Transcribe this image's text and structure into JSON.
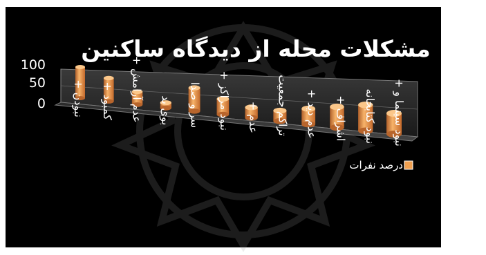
{
  "chart_data": {
    "type": "bar",
    "title": "مشکلات محله از دیدگاه ساکنین",
    "categories": [
      "نبودن +",
      "کمبود +",
      "عدم آرامش +",
      "بوی بد",
      "سر و صدا",
      "نبود مراکز +",
      "عدم +",
      "تراکم جمعیت",
      "عدم دید +",
      "اشراف +",
      "نبود کتابخانه",
      "نبود سینما و +"
    ],
    "series": [
      {
        "name": "درصد نفرات",
        "values": [
          60,
          45,
          25,
          10,
          45,
          30,
          20,
          20,
          30,
          40,
          50,
          40
        ]
      }
    ],
    "y_ticks": [
      "100",
      "50",
      "0"
    ],
    "ylim": [
      0,
      100
    ],
    "legend_position": "right",
    "bar_color": "#F0A050",
    "background_color": "#000000",
    "text_color": "#ffffff"
  }
}
